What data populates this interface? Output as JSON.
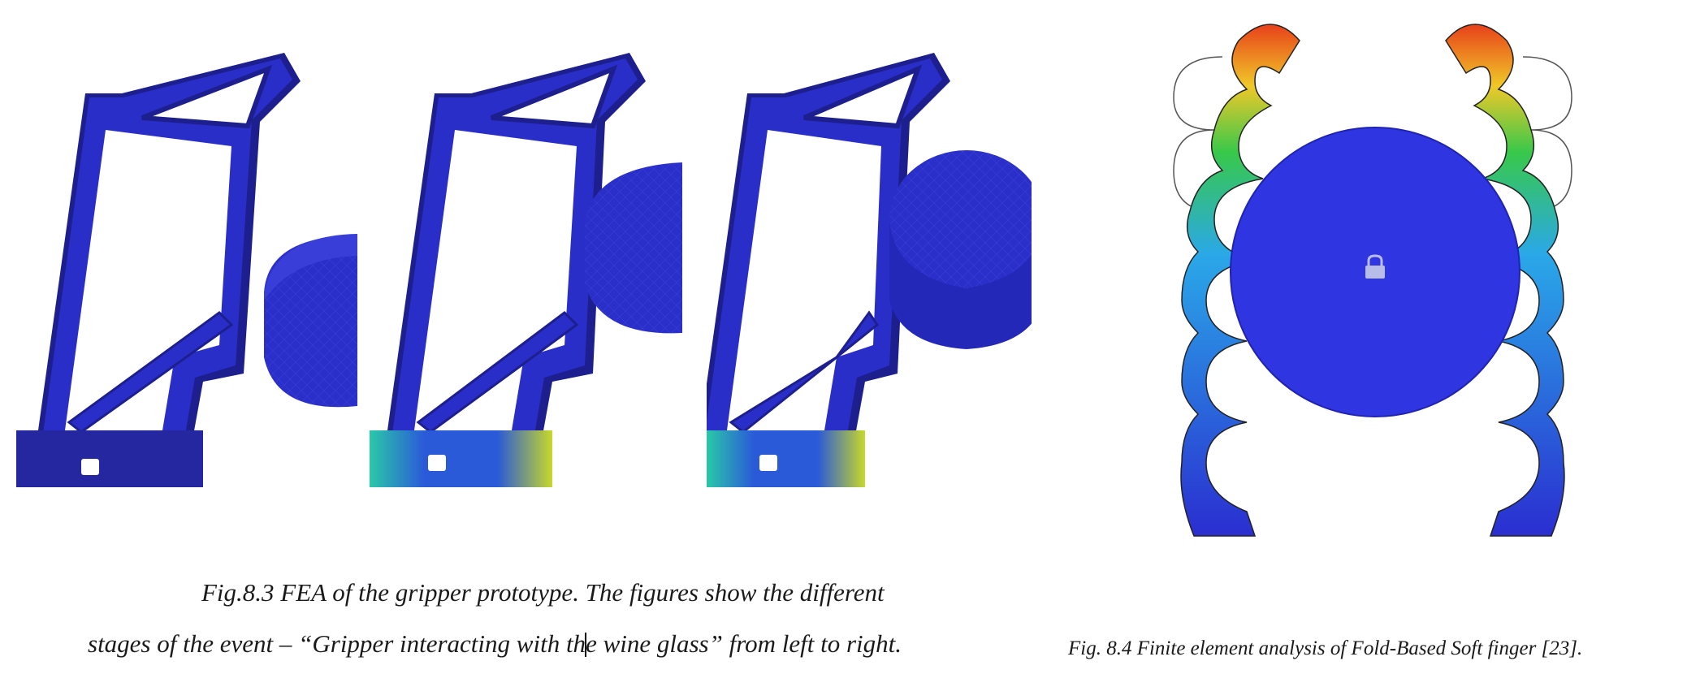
{
  "figure_8_3": {
    "caption_line1": "Fig.8.3  FEA of the gripper prototype. The figures show the different",
    "caption_line2_before": "stages of the event – “Gripper interacting with th",
    "caption_line2_after": "e wine glass” from left to right."
  },
  "figure_8_4": {
    "caption": "Fig. 8.4 Finite element analysis of Fold-Based Soft finger [23]."
  },
  "colors": {
    "mesh_blue": "#2a2ec8",
    "mesh_dark": "#1a1c8a",
    "contour_red": "#e8401a",
    "contour_green": "#38c84a",
    "contour_cyan": "#2aa8e8"
  }
}
